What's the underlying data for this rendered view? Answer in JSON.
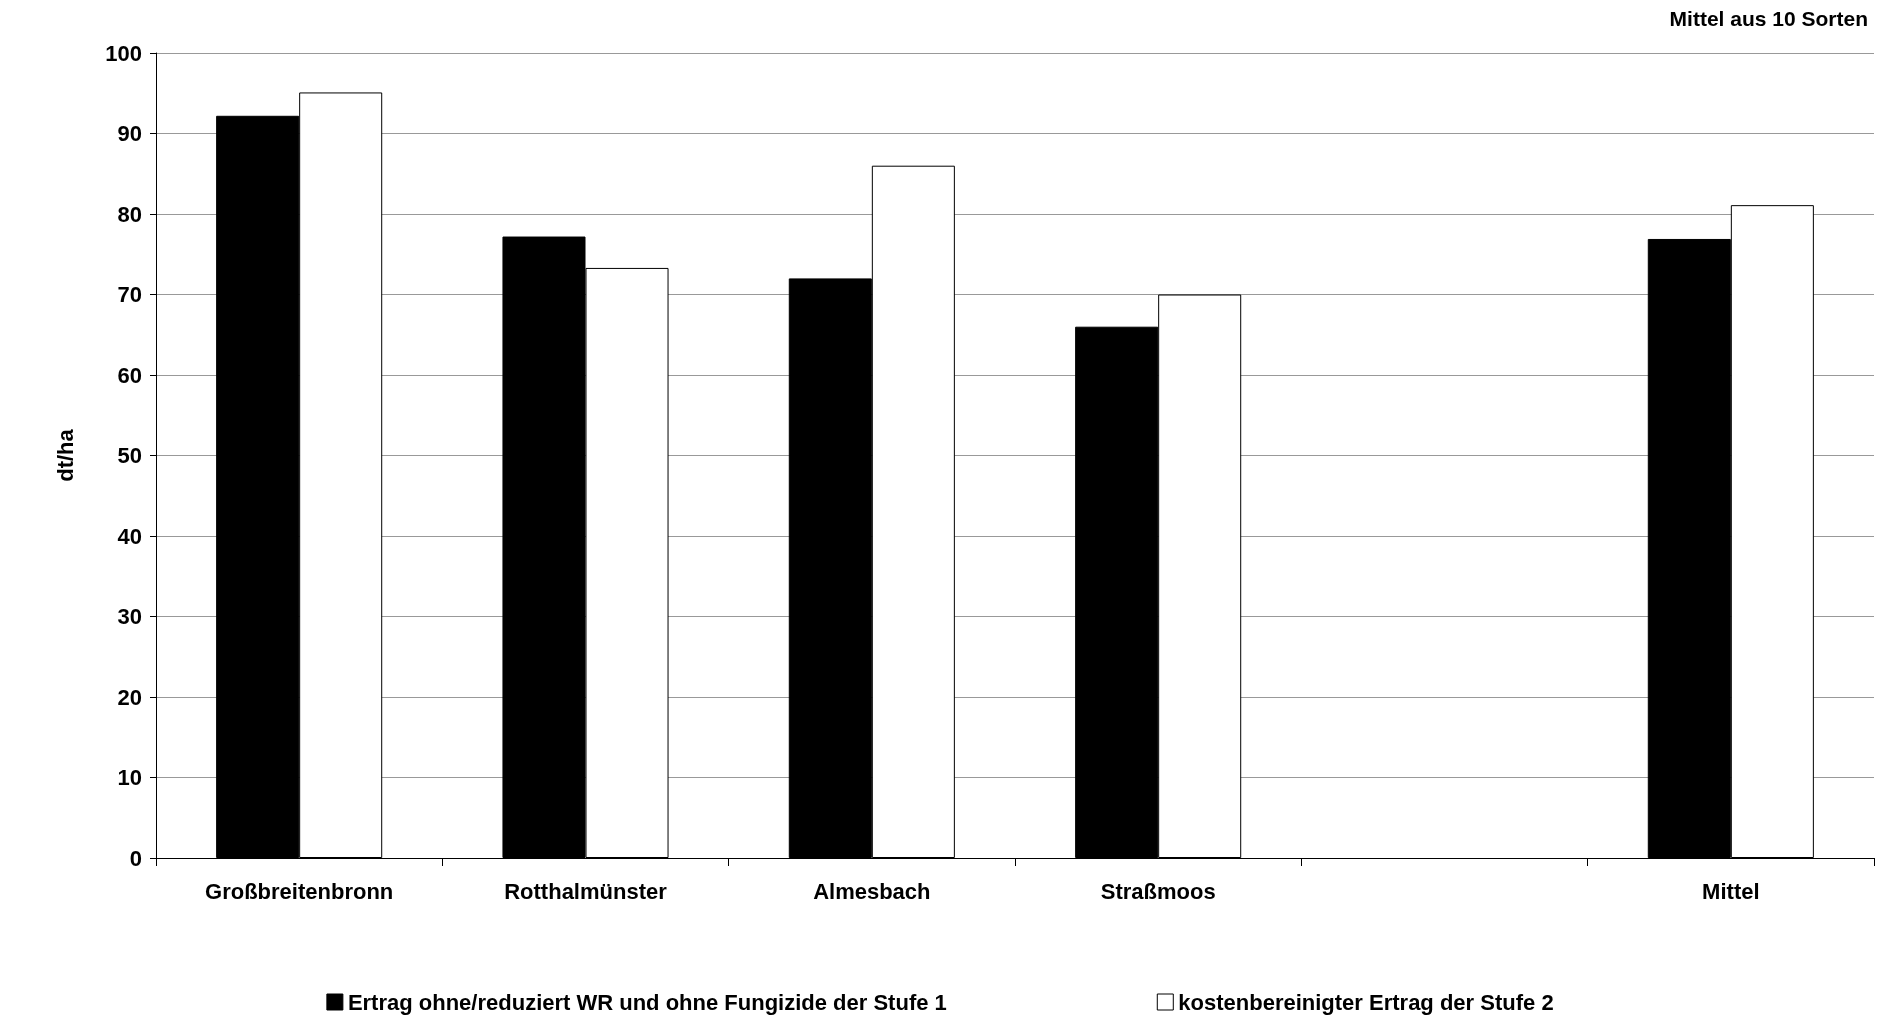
{
  "chart_data": {
    "type": "bar",
    "ylabel": "dt/ha",
    "annotations": [
      "Mittel aus 10 Sorten"
    ],
    "categories": [
      "Großbreitenbronn",
      "Rotthalmünster",
      "Almesbach",
      "Straßmoos",
      null,
      "Mittel"
    ],
    "series": [
      {
        "name": "Ertrag ohne/reduziert WR und ohne Fungizide der Stufe 1",
        "color": "#000000",
        "values": [
          92.2,
          77.2,
          72.0,
          66.0,
          null,
          76.9
        ]
      },
      {
        "name": "kostenbereinigter Ertrag der Stufe 2",
        "color": "#ffffff",
        "values": [
          95.1,
          73.3,
          86.0,
          70.0,
          null,
          81.1
        ]
      }
    ],
    "ylim": [
      0,
      100
    ],
    "yticks": [
      0,
      10,
      20,
      30,
      40,
      50,
      60,
      70,
      80,
      90,
      100
    ],
    "grid": "y",
    "legend": "bottom"
  }
}
